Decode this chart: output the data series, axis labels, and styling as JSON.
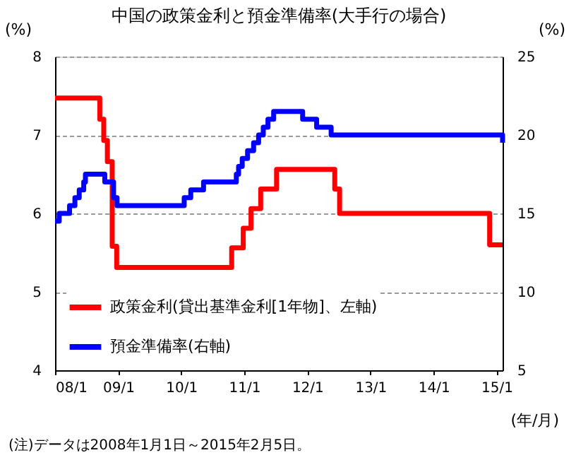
{
  "chart_data": {
    "type": "step",
    "title": "中国の政策金利と預金準備率(大手行の場合)",
    "xlabel": "(年/月)",
    "ylabel": "(%)",
    "y2label": "(%)",
    "xlim": [
      "2008-01-01",
      "2015-02-05"
    ],
    "xticks": [
      {
        "value": "2008-01-01",
        "label": "08/1"
      },
      {
        "value": "2009-01-01",
        "label": "09/1"
      },
      {
        "value": "2010-01-01",
        "label": "10/1"
      },
      {
        "value": "2011-01-01",
        "label": "11/1"
      },
      {
        "value": "2012-01-01",
        "label": "12/1"
      },
      {
        "value": "2013-01-01",
        "label": "13/1"
      },
      {
        "value": "2014-01-01",
        "label": "14/1"
      },
      {
        "value": "2015-01-01",
        "label": "15/1"
      }
    ],
    "ylim": [
      4,
      8
    ],
    "yticks": [
      4,
      5,
      6,
      7,
      8
    ],
    "y2lim": [
      5,
      25
    ],
    "y2ticks": [
      5,
      10,
      15,
      20,
      25
    ],
    "grid": "y",
    "legend": "bottom left",
    "line_style": "solid",
    "marker": "none",
    "series": [
      {
        "name": "政策金利(貸出基準金利[1年物]、左軸)",
        "color": "#ff0000",
        "x": [
          "2008-01-01",
          "2008-09-16",
          "2008-10-09",
          "2008-10-30",
          "2008-11-27",
          "2008-12-23",
          "2010-10-20",
          "2010-12-26",
          "2011-02-09",
          "2011-04-06",
          "2011-07-07",
          "2012-06-08",
          "2012-07-06",
          "2014-11-22",
          "2015-02-05"
        ],
        "values": [
          7.47,
          7.2,
          6.93,
          6.66,
          5.58,
          5.31,
          5.56,
          5.81,
          6.06,
          6.31,
          6.56,
          6.31,
          6.0,
          5.6,
          5.6
        ]
      },
      {
        "name": "預金準備率(右軸)",
        "color": "#0000ff",
        "axis": "y2",
        "x": [
          "2008-01-01",
          "2008-01-25",
          "2008-03-25",
          "2008-04-25",
          "2008-05-20",
          "2008-06-15",
          "2008-06-25",
          "2008-10-15",
          "2008-12-05",
          "2008-12-25",
          "2010-01-18",
          "2010-02-25",
          "2010-05-10",
          "2010-11-16",
          "2010-11-29",
          "2010-12-20",
          "2011-01-20",
          "2011-02-24",
          "2011-03-25",
          "2011-04-21",
          "2011-05-18",
          "2011-06-20",
          "2011-12-05",
          "2012-02-24",
          "2012-05-18",
          "2015-02-05"
        ],
        "values": [
          14.5,
          15.0,
          15.5,
          16.0,
          16.5,
          17.0,
          17.5,
          17.0,
          16.0,
          15.5,
          16.0,
          16.5,
          17.0,
          17.5,
          18.0,
          18.5,
          19.0,
          19.5,
          20.0,
          20.5,
          21.0,
          21.5,
          21.0,
          20.5,
          20.0,
          19.5
        ]
      }
    ],
    "annotations": [
      "(注)データは2008年1月1日～2015年2月5日。"
    ]
  }
}
